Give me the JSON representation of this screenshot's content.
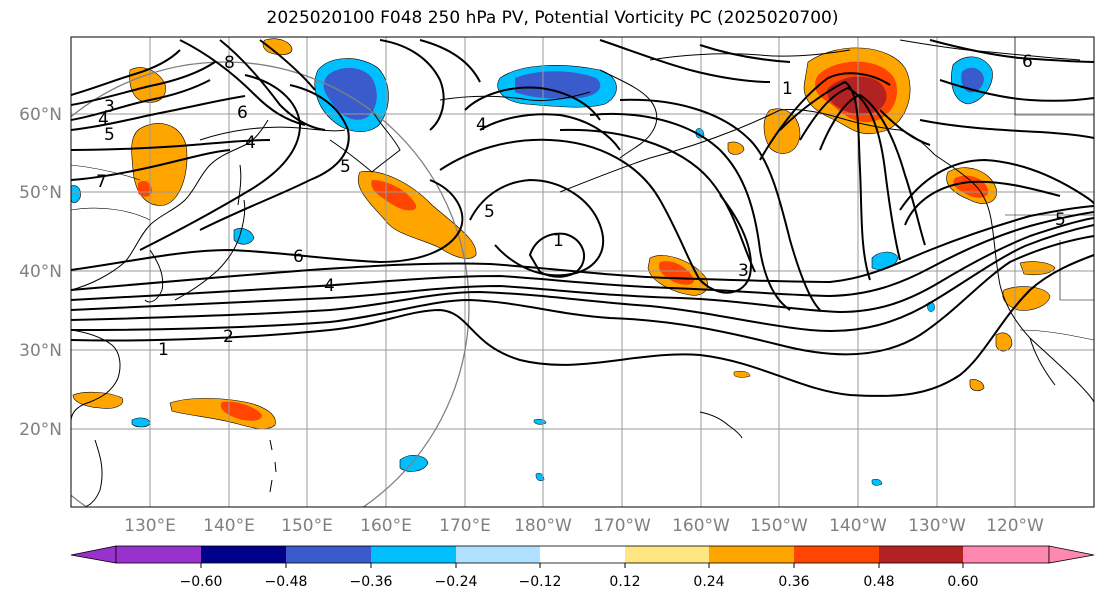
{
  "title": "2025020100 F048 250 hPa PV, Potential Vorticity PC (2025020700)",
  "map": {
    "lat_labels": [
      "60°N",
      "50°N",
      "40°N",
      "30°N",
      "20°N"
    ],
    "lon_labels": [
      "130°E",
      "140°E",
      "150°E",
      "160°E",
      "170°E",
      "180°W",
      "170°W",
      "160°W",
      "150°W",
      "140°W",
      "130°W",
      "120°W"
    ],
    "contour_labels": [
      "3",
      "4",
      "5",
      "7",
      "8",
      "6",
      "4",
      "6",
      "4",
      "2",
      "1",
      "5",
      "1",
      "4",
      "5",
      "3",
      "1",
      "6",
      "5"
    ]
  },
  "colorbar": {
    "tick_labels": [
      "−0.60",
      "−0.48",
      "−0.36",
      "−0.24",
      "−0.12",
      "0.12",
      "0.24",
      "0.36",
      "0.48",
      "0.60"
    ],
    "colors": [
      "#9932cc",
      "#00008b",
      "#3a5bcc",
      "#00bfff",
      "#b0e0ff",
      "#ffffff",
      "#ffe680",
      "#ffa500",
      "#ff4500",
      "#b22222",
      "#ff88b0"
    ]
  }
}
